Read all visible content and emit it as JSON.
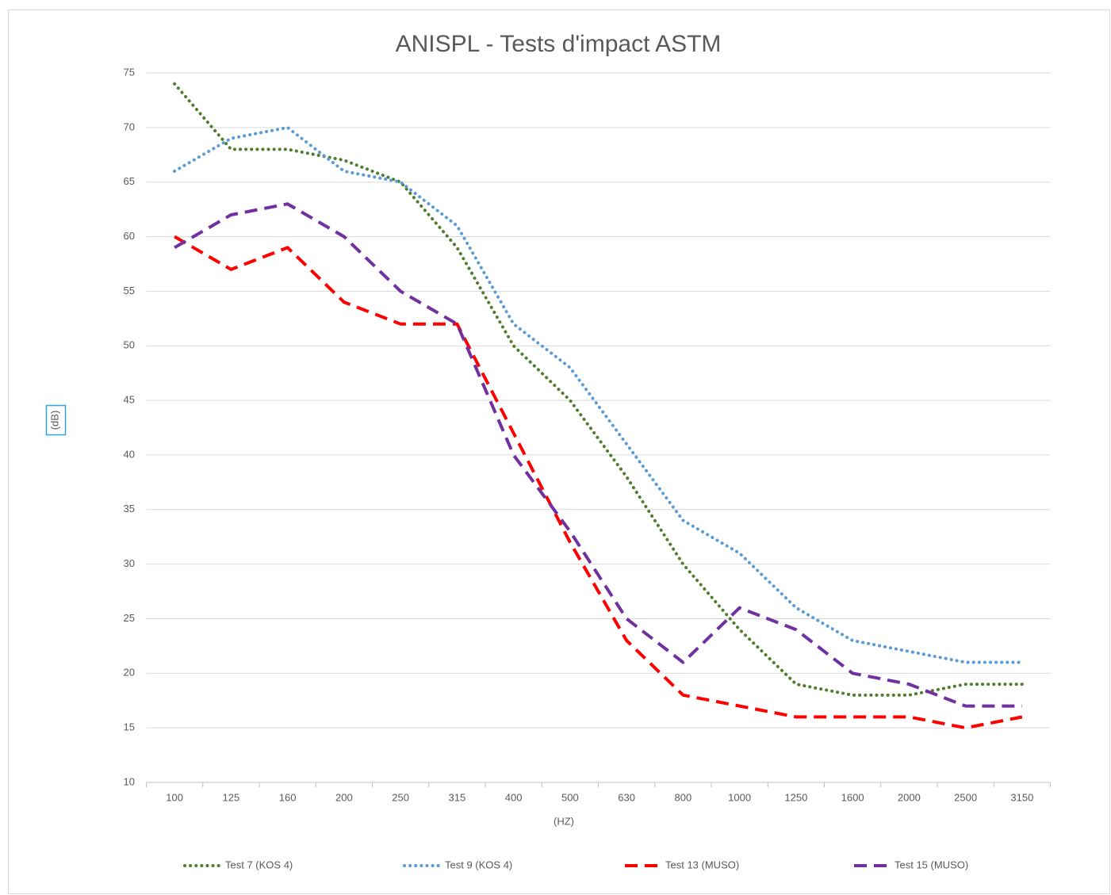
{
  "chart_data": {
    "type": "line",
    "title": "ANISPL - Tests d'impact ASTM",
    "x_label": "(HZ)",
    "y_label": "(dB)",
    "categories": [
      "100",
      "125",
      "160",
      "200",
      "250",
      "315",
      "400",
      "500",
      "630",
      "800",
      "1000",
      "1250",
      "1600",
      "2000",
      "2500",
      "3150"
    ],
    "series": [
      {
        "name": "Test 7 (KOS 4)",
        "color": "#4e7d2c",
        "style": "dotted",
        "values": [
          74,
          68,
          68,
          67,
          65,
          59,
          50,
          45,
          38,
          30,
          24,
          19,
          18,
          18,
          19,
          19
        ]
      },
      {
        "name": "Test 9 (KOS 4)",
        "color": "#5b9bd5",
        "style": "dotted",
        "values": [
          66,
          69,
          70,
          66,
          65,
          61,
          52,
          48,
          41,
          34,
          31,
          26,
          23,
          22,
          21,
          21
        ]
      },
      {
        "name": "Test 13 (MUSO)",
        "color": "#ff0000",
        "style": "dashed",
        "values": [
          60,
          57,
          59,
          54,
          52,
          52,
          42,
          32,
          23,
          18,
          17,
          16,
          16,
          16,
          15,
          16
        ]
      },
      {
        "name": "Test 15 (MUSO)",
        "color": "#7030a0",
        "style": "dashed",
        "values": [
          59,
          62,
          63,
          60,
          55,
          52,
          40,
          33,
          25,
          21,
          26,
          24,
          20,
          19,
          17,
          17
        ]
      }
    ],
    "ylim": [
      10,
      75
    ],
    "yticks": [
      10,
      15,
      20,
      25,
      30,
      35,
      40,
      45,
      50,
      55,
      60,
      65,
      70,
      75
    ],
    "grid": true,
    "legend": "bottom"
  }
}
